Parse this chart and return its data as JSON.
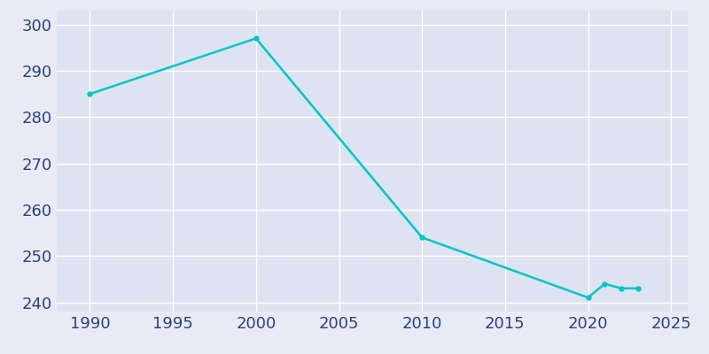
{
  "years": [
    1990,
    2000,
    2010,
    2020,
    2021,
    2022,
    2023
  ],
  "population": [
    285,
    297,
    254,
    241,
    244,
    243,
    243
  ],
  "line_color": "#00C5C5",
  "marker_color": "#00C5C5",
  "bg_color": "#E8EBF5",
  "plot_bg_color": "#DDE3F0",
  "grid_color": "#FFFFFF",
  "tick_color": "#2E3F80",
  "xlim": [
    1988,
    2026
  ],
  "ylim": [
    238,
    303
  ],
  "xticks": [
    1990,
    1995,
    2000,
    2005,
    2010,
    2015,
    2020,
    2025
  ],
  "yticks": [
    240,
    250,
    260,
    270,
    280,
    290,
    300
  ],
  "line_width": 1.8,
  "marker_size": 3.5,
  "marker_style": "o",
  "tick_fontsize": 13
}
